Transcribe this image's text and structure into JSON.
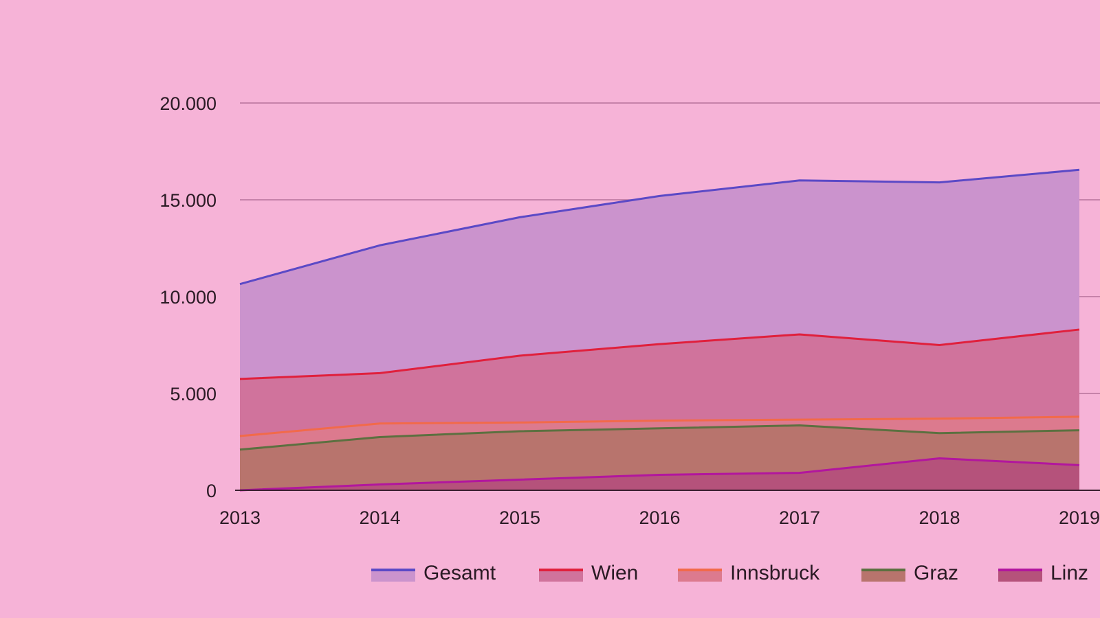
{
  "chart_data": {
    "type": "area",
    "title": "",
    "xlabel": "",
    "ylabel": "",
    "x": [
      "2013",
      "2014",
      "2015",
      "2016",
      "2017",
      "2018",
      "2019"
    ],
    "ylim": [
      0,
      20000
    ],
    "y_ticks": [
      {
        "value": 0,
        "label": "0"
      },
      {
        "value": 5000,
        "label": "5.000"
      },
      {
        "value": 10000,
        "label": "10.000"
      },
      {
        "value": 15000,
        "label": "15.000"
      },
      {
        "value": 20000,
        "label": "20.000"
      }
    ],
    "grid": true,
    "legend_position": "bottom",
    "series": [
      {
        "name": "Gesamt",
        "values": [
          10650,
          12650,
          14100,
          15200,
          16000,
          15900,
          16550
        ],
        "line_color": "#5b49c6",
        "fill_color": "#cb93cd"
      },
      {
        "name": "Wien",
        "values": [
          5750,
          6050,
          6950,
          7550,
          8050,
          7500,
          8300
        ],
        "line_color": "#e0203c",
        "fill_color": "#d0739c"
      },
      {
        "name": "Innsbruck",
        "values": [
          2800,
          3450,
          3500,
          3600,
          3650,
          3700,
          3800
        ],
        "line_color": "#f26a4a",
        "fill_color": "#dc7a8e"
      },
      {
        "name": "Graz",
        "values": [
          2100,
          2750,
          3050,
          3200,
          3350,
          2950,
          3100
        ],
        "line_color": "#5c7040",
        "fill_color": "#b8746d"
      },
      {
        "name": "Linz",
        "values": [
          0,
          300,
          550,
          800,
          900,
          1650,
          1300
        ],
        "line_color": "#b2169e",
        "fill_color": "#b5527b"
      }
    ]
  }
}
